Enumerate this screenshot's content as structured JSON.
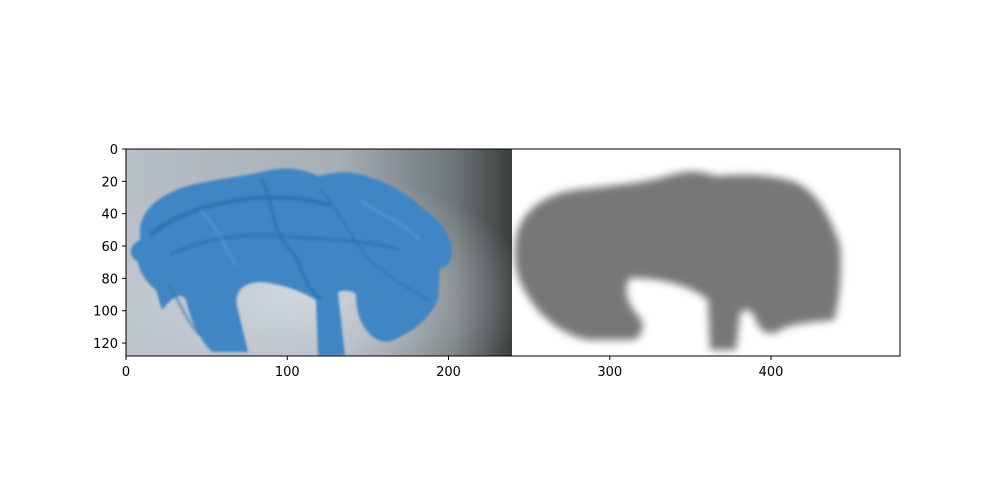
{
  "figure": {
    "panels": [
      "blue-object-photo",
      "grayscale-depth-map"
    ],
    "colors": {
      "photo_background": "#aeb6c0",
      "photo_shadow": "#3a3f3c",
      "blue_object": "#3f86c4",
      "blue_object_dark": "#2e6fa8",
      "depth_background": "#ffffff",
      "depth_object": "#777777"
    }
  },
  "axes": {
    "xlim": [
      0,
      480
    ],
    "ylim": [
      128,
      0
    ],
    "x_ticks": [
      {
        "value": 0,
        "label": "0"
      },
      {
        "value": 100,
        "label": "100"
      },
      {
        "value": 200,
        "label": "200"
      },
      {
        "value": 300,
        "label": "300"
      },
      {
        "value": 400,
        "label": "400"
      }
    ],
    "y_ticks": [
      {
        "value": 0,
        "label": "0"
      },
      {
        "value": 20,
        "label": "20"
      },
      {
        "value": 40,
        "label": "40"
      },
      {
        "value": 60,
        "label": "60"
      },
      {
        "value": 80,
        "label": "80"
      },
      {
        "value": 100,
        "label": "100"
      },
      {
        "value": 120,
        "label": "120"
      }
    ]
  }
}
